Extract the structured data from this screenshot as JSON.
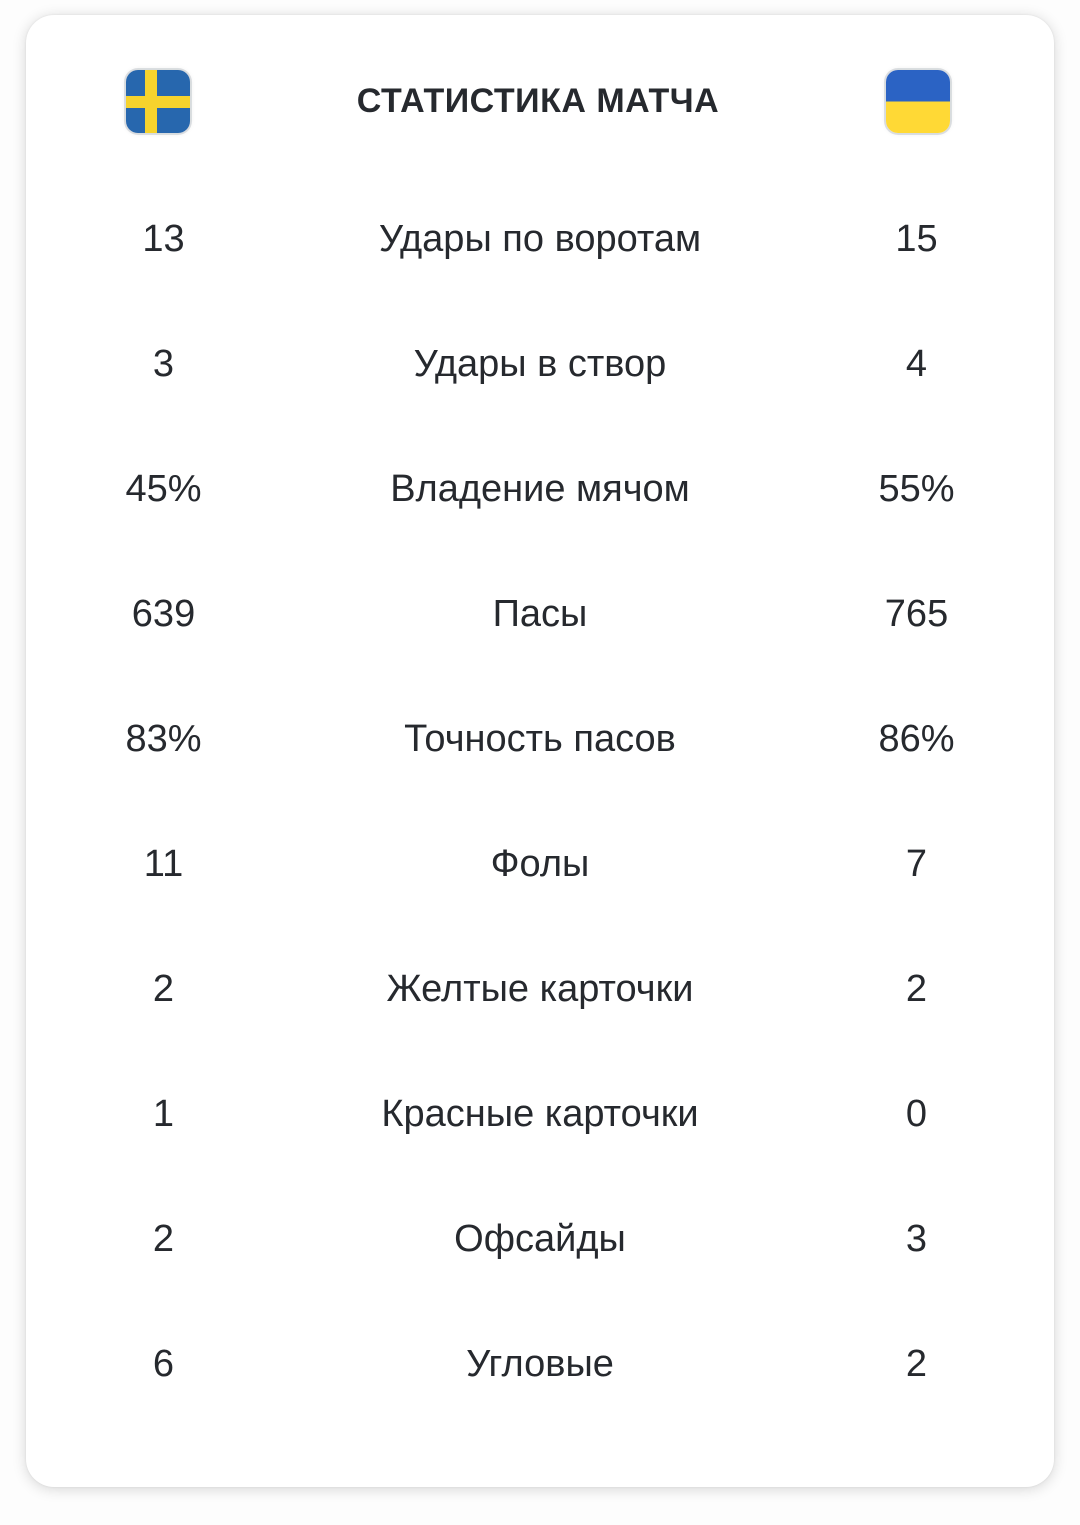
{
  "header": {
    "title": "СТАТИСТИКА МАТЧА",
    "home_flag_icon": "sweden-flag-icon",
    "away_flag_icon": "ukraine-flag-icon"
  },
  "stats": [
    {
      "home": "13",
      "label": "Удары по воротам",
      "away": "15"
    },
    {
      "home": "3",
      "label": "Удары в створ",
      "away": "4"
    },
    {
      "home": "45%",
      "label": "Владение мячом",
      "away": "55%"
    },
    {
      "home": "639",
      "label": "Пасы",
      "away": "765"
    },
    {
      "home": "83%",
      "label": "Точность пасов",
      "away": "86%"
    },
    {
      "home": "11",
      "label": "Фолы",
      "away": "7"
    },
    {
      "home": "2",
      "label": "Желтые карточки",
      "away": "2"
    },
    {
      "home": "1",
      "label": "Красные карточки",
      "away": "0"
    },
    {
      "home": "2",
      "label": "Офсайды",
      "away": "3"
    },
    {
      "home": "6",
      "label": "Угловые",
      "away": "2"
    }
  ],
  "colors": {
    "text": "#26292e",
    "card_bg": "#ffffff",
    "page_bg": "#fdfdfd",
    "sweden_blue": "#2767ae",
    "sweden_yellow": "#f6d32d",
    "ukraine_blue": "#2b63c4",
    "ukraine_yellow": "#ffd935"
  }
}
